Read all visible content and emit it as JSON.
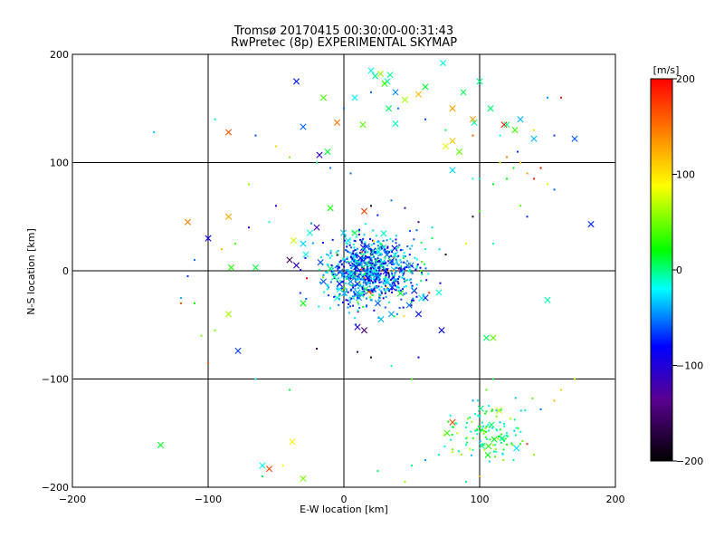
{
  "chart_data": {
    "type": "scatter",
    "title": "Tromsø 20170415 00:30:00-00:31:43",
    "subtitle": "RwPretec (8p) EXPERIMENTAL SKYMAP",
    "xlabel": "E-W location [km]",
    "ylabel": "N-S location [km]",
    "xlim": [
      -200,
      200
    ],
    "ylim": [
      -200,
      200
    ],
    "x_ticks": [
      -200,
      -100,
      0,
      100,
      200
    ],
    "y_ticks": [
      -200,
      -100,
      0,
      100,
      200
    ],
    "x_tick_labels": [
      "−200",
      "−100",
      "0",
      "100",
      "200"
    ],
    "y_tick_labels": [
      "−200",
      "−100",
      "0",
      "100",
      "200"
    ],
    "grid": true,
    "colorbar": {
      "label": "[m/s]",
      "range": [
        -200,
        200
      ],
      "ticks": [
        200,
        100,
        0,
        -100,
        -200
      ],
      "tick_labels": [
        "200",
        "100",
        "0",
        "−100",
        "−200"
      ]
    },
    "colors": {
      "stops": [
        "#000000",
        "#5a0090",
        "#0000ff",
        "#00ffff",
        "#00ff00",
        "#ffff00",
        "#ff0000"
      ]
    },
    "series": [
      {
        "marker": "x",
        "points": [
          [
            20,
            185
          ],
          [
            23,
            180
          ],
          [
            27,
            182
          ],
          [
            34,
            181
          ],
          [
            32,
            175
          ],
          [
            30,
            173
          ],
          [
            38,
            165
          ],
          [
            45,
            158
          ],
          [
            55,
            163
          ],
          [
            60,
            170
          ],
          [
            73,
            192
          ],
          [
            100,
            175
          ],
          [
            -35,
            175
          ],
          [
            -15,
            160
          ],
          [
            8,
            160
          ],
          [
            33,
            150
          ],
          [
            88,
            165
          ],
          [
            118,
            135
          ],
          [
            126,
            130
          ],
          [
            170,
            122
          ],
          [
            140,
            122
          ],
          [
            -85,
            128
          ],
          [
            -30,
            133
          ],
          [
            -5,
            137
          ],
          [
            14,
            135
          ],
          [
            38,
            136
          ],
          [
            80,
            150
          ],
          [
            96,
            137
          ],
          [
            108,
            150
          ],
          [
            120,
            135
          ],
          [
            130,
            140
          ],
          [
            95,
            140
          ],
          [
            -12,
            110
          ],
          [
            -18,
            107
          ],
          [
            80,
            120
          ],
          [
            85,
            110
          ],
          [
            80,
            93
          ],
          [
            75,
            115
          ],
          [
            182,
            43
          ],
          [
            15,
            55
          ],
          [
            -10,
            58
          ],
          [
            -85,
            50
          ],
          [
            -100,
            30
          ],
          [
            -115,
            45
          ],
          [
            -83,
            3
          ],
          [
            -65,
            3
          ],
          [
            -37,
            28
          ],
          [
            -30,
            25
          ],
          [
            -25,
            35
          ],
          [
            -20,
            40
          ],
          [
            -28,
            15
          ],
          [
            -40,
            10
          ],
          [
            -35,
            5
          ],
          [
            -10,
            2
          ],
          [
            -15,
            -10
          ],
          [
            -30,
            -30
          ],
          [
            -85,
            -40
          ],
          [
            -78,
            -74
          ],
          [
            -135,
            -161
          ],
          [
            -38,
            -158
          ],
          [
            -60,
            -180
          ],
          [
            -30,
            -192
          ],
          [
            -55,
            -183
          ],
          [
            10,
            -52
          ],
          [
            15,
            -55
          ],
          [
            25,
            -30
          ],
          [
            35,
            -40
          ],
          [
            55,
            -40
          ],
          [
            72,
            -55
          ],
          [
            110,
            -62
          ],
          [
            150,
            -27
          ],
          [
            80,
            -140
          ],
          [
            105,
            -62
          ],
          [
            60,
            -25
          ],
          [
            70,
            -20
          ],
          [
            10,
            -20
          ],
          [
            5,
            -10
          ],
          [
            -5,
            -25
          ],
          [
            3,
            28
          ],
          [
            8,
            35
          ]
        ]
      },
      {
        "marker": "dot",
        "points": [
          [
            -95,
            140
          ],
          [
            -140,
            128
          ],
          [
            0,
            150
          ],
          [
            20,
            165
          ],
          [
            40,
            150
          ],
          [
            60,
            140
          ],
          [
            75,
            130
          ],
          [
            95,
            125
          ],
          [
            115,
            125
          ],
          [
            140,
            130
          ],
          [
            155,
            125
          ],
          [
            150,
            160
          ],
          [
            160,
            160
          ],
          [
            120,
            105
          ],
          [
            125,
            95
          ],
          [
            130,
            100
          ],
          [
            135,
            90
          ],
          [
            140,
            85
          ],
          [
            128,
            110
          ],
          [
            145,
            95
          ],
          [
            115,
            100
          ],
          [
            120,
            85
          ],
          [
            110,
            80
          ],
          [
            100,
            85
          ],
          [
            95,
            85
          ],
          [
            150,
            80
          ],
          [
            155,
            75
          ],
          [
            135,
            50
          ],
          [
            130,
            60
          ],
          [
            95,
            50
          ],
          [
            100,
            55
          ],
          [
            110,
            25
          ],
          [
            90,
            25
          ],
          [
            75,
            15
          ],
          [
            65,
            30
          ],
          [
            60,
            20
          ],
          [
            -65,
            125
          ],
          [
            -50,
            115
          ],
          [
            -40,
            105
          ],
          [
            -20,
            100
          ],
          [
            -10,
            95
          ],
          [
            5,
            90
          ],
          [
            -70,
            80
          ],
          [
            -50,
            60
          ],
          [
            -55,
            45
          ],
          [
            -70,
            40
          ],
          [
            -80,
            25
          ],
          [
            -90,
            20
          ],
          [
            -110,
            10
          ],
          [
            -115,
            -5
          ],
          [
            -120,
            -25
          ],
          [
            -110,
            -30
          ],
          [
            -95,
            -55
          ],
          [
            -100,
            -85
          ],
          [
            -65,
            -100
          ],
          [
            -40,
            -110
          ],
          [
            -20,
            -72
          ],
          [
            10,
            -75
          ],
          [
            20,
            -80
          ],
          [
            35,
            -88
          ],
          [
            55,
            -80
          ],
          [
            50,
            -100
          ],
          [
            105,
            -110
          ],
          [
            110,
            -100
          ],
          [
            95,
            -120
          ],
          [
            105,
            -130
          ],
          [
            115,
            -140
          ],
          [
            120,
            -150
          ],
          [
            130,
            -160
          ],
          [
            140,
            -170
          ],
          [
            90,
            -155
          ],
          [
            80,
            -165
          ],
          [
            70,
            -170
          ],
          [
            60,
            -175
          ],
          [
            50,
            -180
          ],
          [
            45,
            -195
          ],
          [
            25,
            -185
          ],
          [
            -45,
            -180
          ],
          [
            -60,
            -190
          ],
          [
            -120,
            -30
          ],
          [
            -105,
            -60
          ],
          [
            170,
            -100
          ],
          [
            160,
            -110
          ],
          [
            155,
            -120
          ],
          [
            145,
            -128
          ],
          [
            135,
            -160
          ],
          [
            125,
            -175
          ],
          [
            100,
            -190
          ],
          [
            90,
            -195
          ],
          [
            20,
            60
          ],
          [
            35,
            65
          ],
          [
            45,
            58
          ],
          [
            55,
            45
          ],
          [
            65,
            40
          ]
        ]
      }
    ],
    "clusters": [
      {
        "center": [
          20,
          0
        ],
        "spread": [
          30,
          28
        ],
        "count": 900,
        "seed": 7
      },
      {
        "center": [
          105,
          -150
        ],
        "spread": [
          28,
          22
        ],
        "count": 120,
        "seed": 13
      }
    ]
  }
}
